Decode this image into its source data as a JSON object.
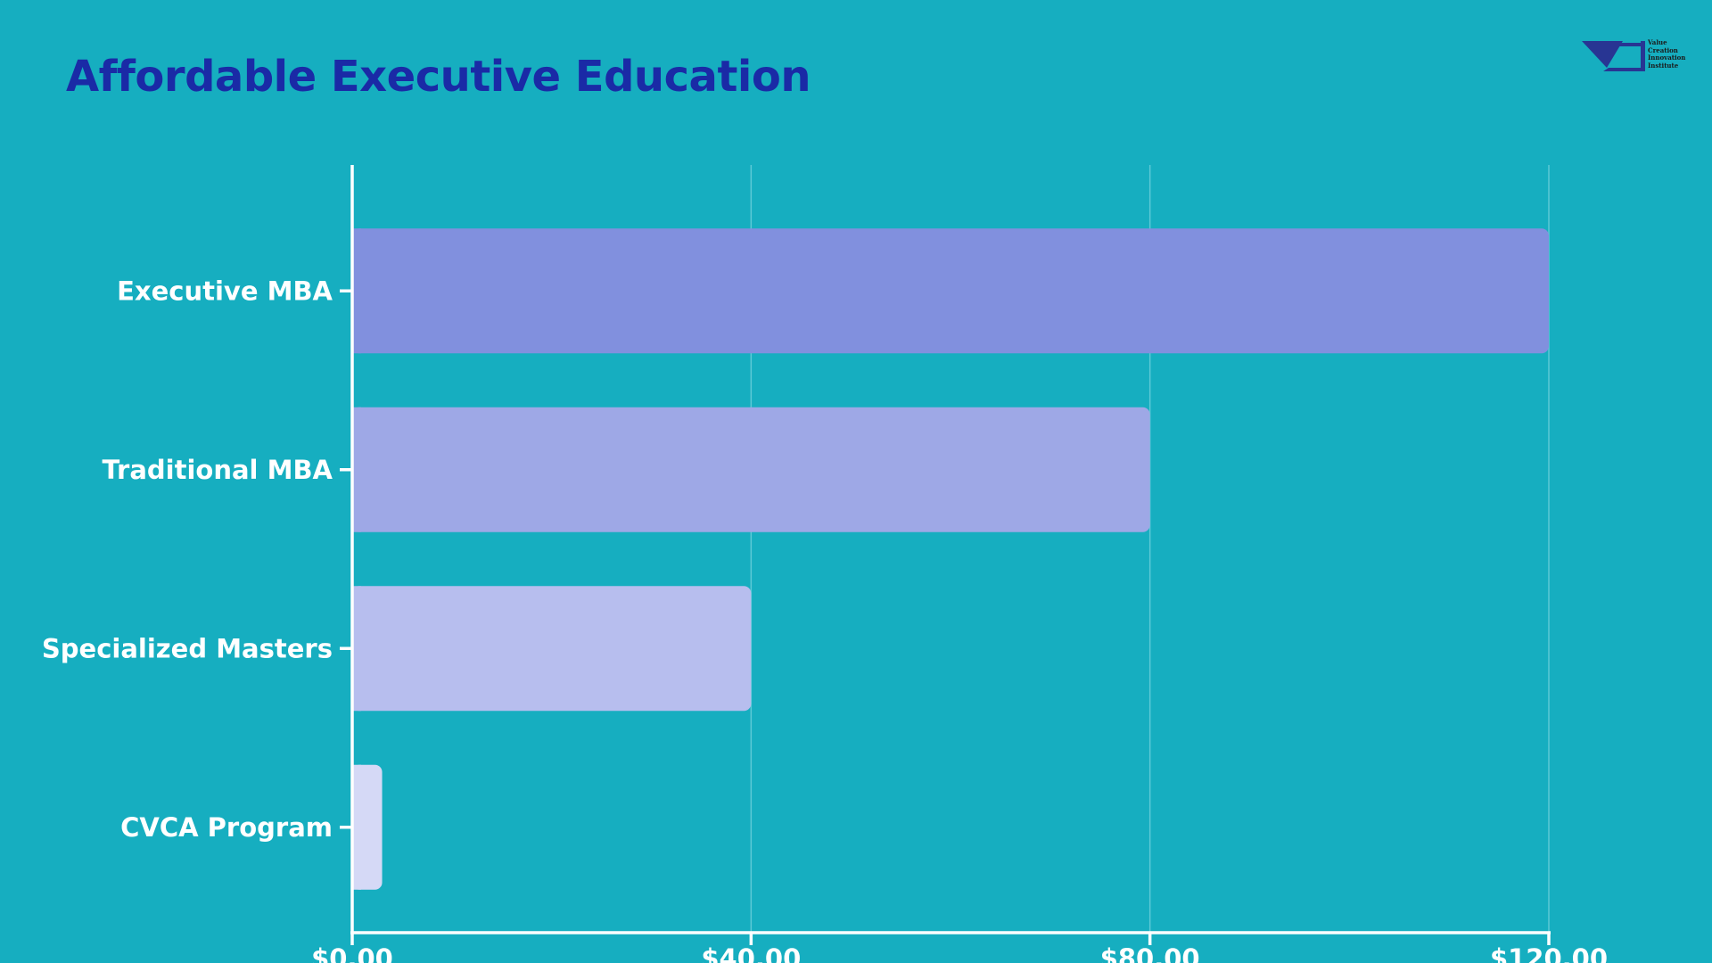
{
  "title": "Affordable Executive Education",
  "logo": {
    "lines": [
      "Value",
      "Creation",
      "Innovation",
      "Institute"
    ]
  },
  "colors": {
    "background": "#16aec0",
    "title": "#1a2aa6",
    "axis": "#ffffff",
    "grid": "#5cc9d6",
    "label": "#ffffff",
    "logo": "#283593"
  },
  "chart_data": {
    "type": "bar",
    "orientation": "horizontal",
    "title": "Affordable Executive Education",
    "categories": [
      "Executive MBA",
      "Traditional MBA",
      "Specialized Masters",
      "CVCA Program"
    ],
    "values": [
      120,
      80,
      40,
      3
    ],
    "bar_colors": [
      "#8190de",
      "#9ea8e6",
      "#b7beee",
      "#d5d9f6"
    ],
    "xlim": [
      0,
      120
    ],
    "x_ticks": [
      0,
      40,
      80,
      120
    ],
    "x_tick_labels": [
      "$0.00",
      "$40.00",
      "$80.00",
      "$120.00"
    ],
    "xlabel": "",
    "ylabel": "",
    "grid": true,
    "legend": false
  }
}
